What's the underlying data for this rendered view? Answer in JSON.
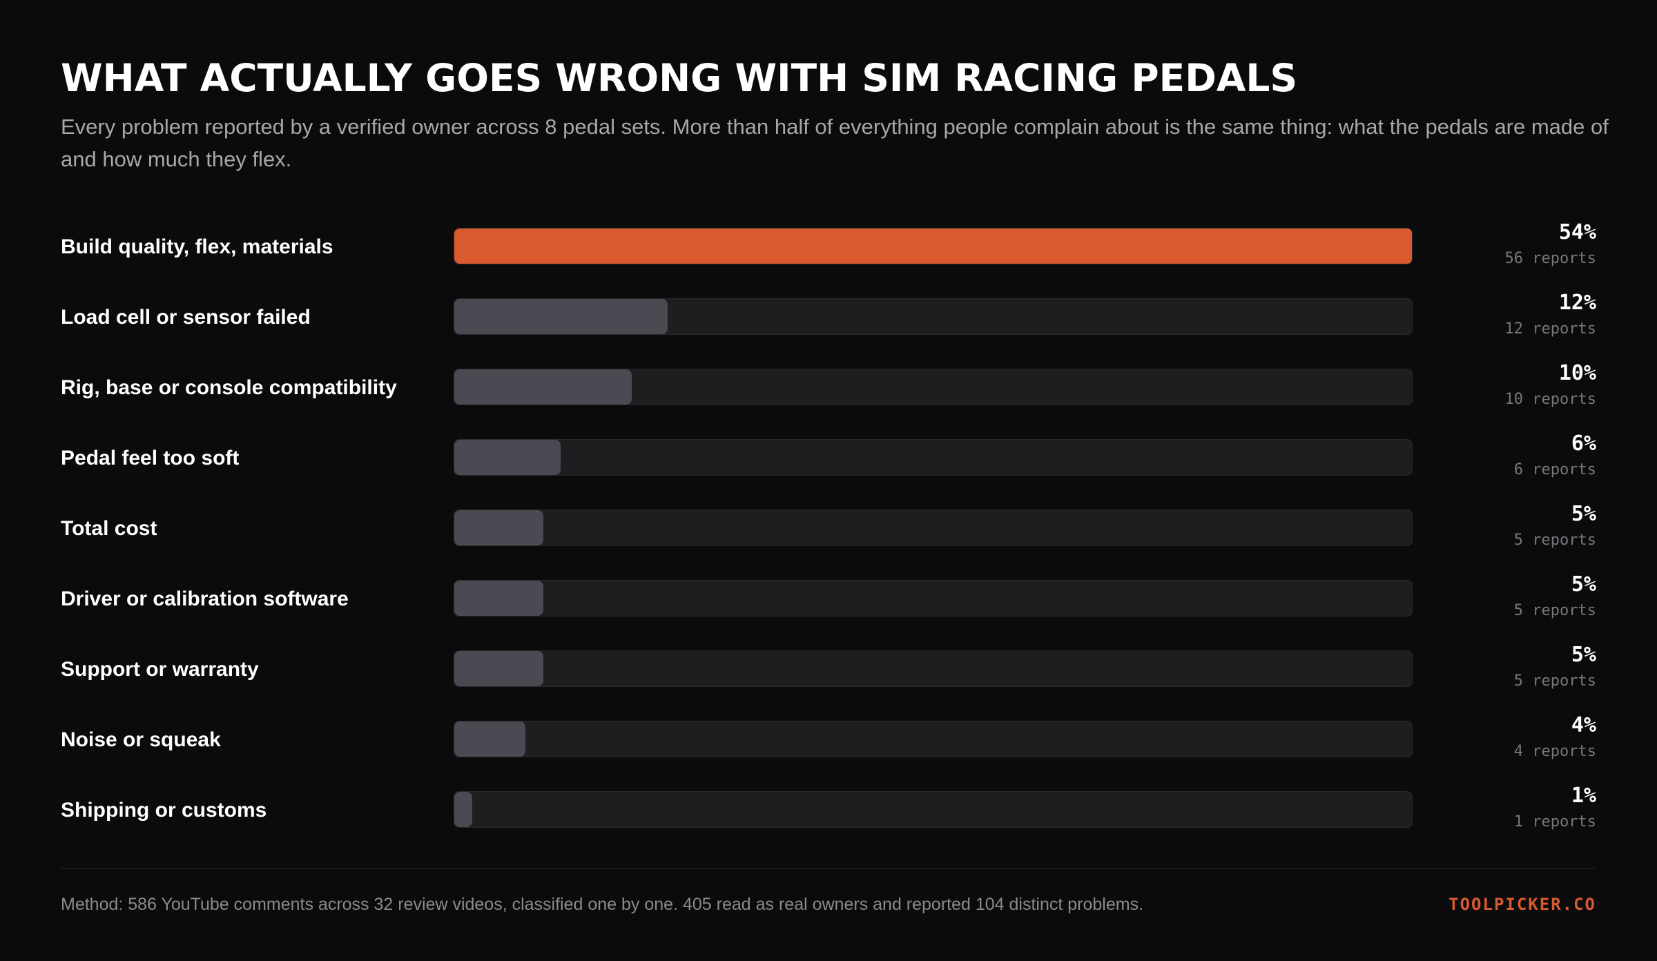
{
  "header": {
    "title": "WHAT ACTUALLY GOES WRONG WITH SIM RACING PEDALS",
    "subtitle": "Every problem reported by a verified owner across 8 pedal sets. More than half of everything people complain about is the same thing: what the pedals are made of and how much they flex."
  },
  "chart_data": {
    "type": "bar",
    "orientation": "horizontal",
    "categories": [
      "Build quality, flex, materials",
      "Load cell or sensor failed",
      "Rig, base or console compatibility",
      "Pedal feel too soft",
      "Total cost",
      "Driver or calibration software",
      "Support or warranty",
      "Noise or squeak",
      "Shipping or customs"
    ],
    "values": [
      54,
      12,
      10,
      6,
      5,
      5,
      5,
      4,
      1
    ],
    "value_labels": [
      "54%",
      "12%",
      "10%",
      "6%",
      "5%",
      "5%",
      "5%",
      "4%",
      "1%"
    ],
    "reports": [
      56,
      12,
      10,
      6,
      5,
      5,
      5,
      4,
      1
    ],
    "report_labels": [
      "56 reports",
      "12 reports",
      "10 reports",
      "6 reports",
      "5 reports",
      "5 reports",
      "5 reports",
      "4 reports",
      "1 reports"
    ],
    "xlim": [
      0,
      54
    ],
    "highlight_index": 0,
    "colors": {
      "highlight": "#d95a2e",
      "bar": "#4a4a52",
      "track": "#1e1e21"
    },
    "grid": false,
    "legend": "none"
  },
  "footer": {
    "method": "Method: 586 YouTube comments across 32 review videos, classified one by one. 405 read as real owners and reported 104 distinct problems.",
    "brand": "TOOLPICKER.CO"
  },
  "colors": {
    "background": "#0b0b0c",
    "accent": "#d95a2e"
  }
}
